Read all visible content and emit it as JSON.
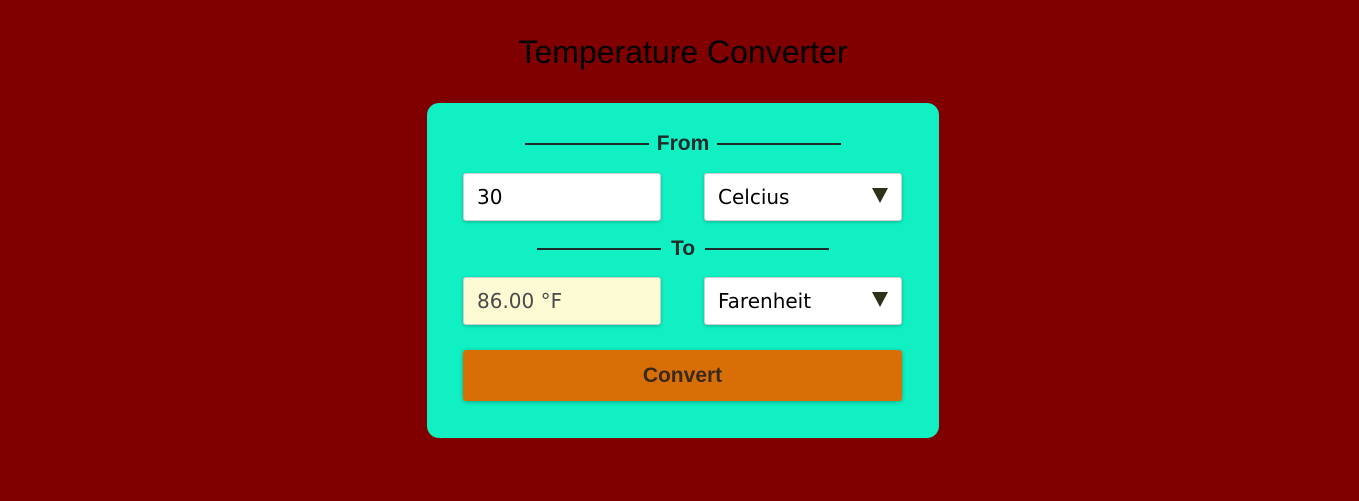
{
  "page": {
    "title": "Temperature Converter"
  },
  "converter": {
    "from_heading": "From",
    "to_heading": "To",
    "from_value": "30",
    "from_unit": "Celcius",
    "to_value": "86.00 °F",
    "to_unit": "Farenheit",
    "convert_label": "Convert"
  },
  "colors": {
    "background": "#800000",
    "card": "#10f0c2",
    "button": "#d86e06",
    "result_field": "#fdfbd4"
  },
  "icons": {
    "select_arrow": "triangle-down-icon"
  }
}
